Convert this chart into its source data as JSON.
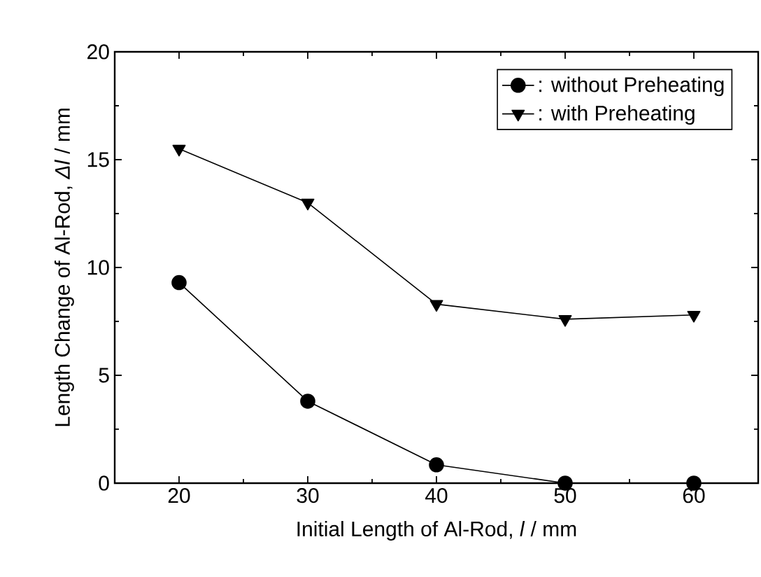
{
  "chart_data": {
    "type": "line",
    "xlabel": "Initial Length of Al-Rod, *l* / mm",
    "ylabel": "Length Change of Al-Rod, *Δl* / mm",
    "x": [
      20,
      30,
      40,
      50,
      60
    ],
    "series": [
      {
        "name": ":  without  Preheating",
        "color": "#000000",
        "marker": "circle",
        "values": [
          9.3,
          3.8,
          0.85,
          0,
          0
        ]
      },
      {
        "name": ":  with Preheating",
        "color": "#000000",
        "marker": "triangle",
        "values": [
          15.5,
          13.0,
          8.3,
          7.6,
          7.8
        ]
      }
    ],
    "xlim": [
      15,
      65
    ],
    "xticks": [
      20,
      30,
      40,
      50,
      60
    ],
    "ylim": [
      0,
      20
    ],
    "yticks": [
      0,
      5,
      10,
      15,
      20
    ],
    "legend": "top right",
    "grid": false,
    "line_style": "solid"
  }
}
